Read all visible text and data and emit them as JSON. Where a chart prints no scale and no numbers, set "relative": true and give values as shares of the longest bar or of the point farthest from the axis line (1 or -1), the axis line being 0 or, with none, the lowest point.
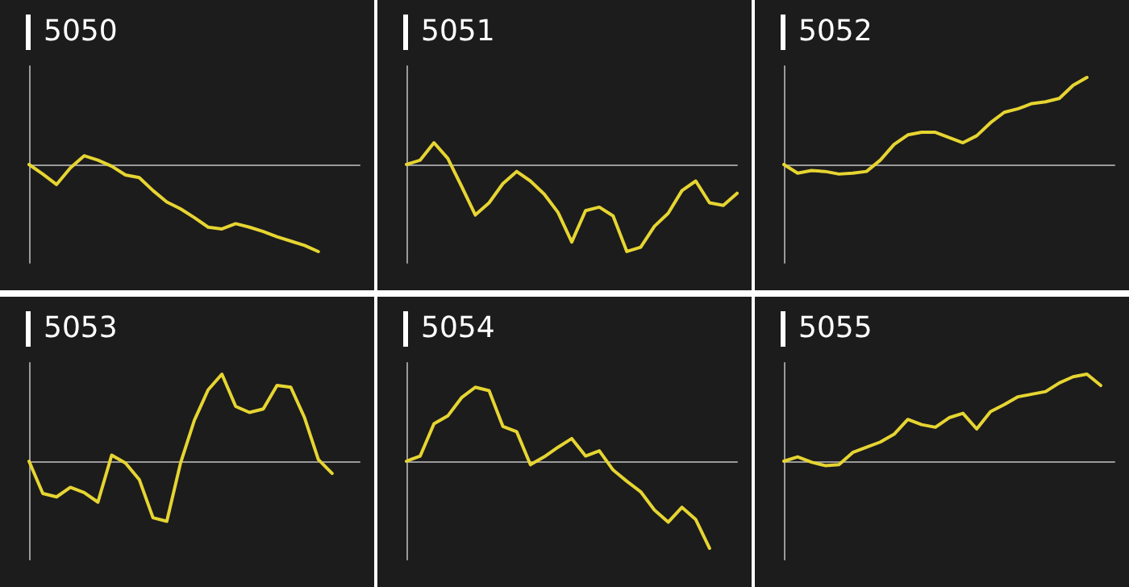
{
  "chart_data": [
    {
      "type": "line",
      "title": "5050",
      "relative": true,
      "grid": false,
      "marker": "none",
      "categories": [
        null,
        null,
        null,
        null,
        null,
        null,
        null,
        null,
        null,
        null,
        null,
        null,
        null,
        null,
        null,
        null,
        null,
        null,
        null,
        null,
        null,
        null,
        null,
        null,
        null
      ],
      "series": [
        {
          "color": "#e6d532",
          "values": [
            0,
            -0.11,
            -0.23,
            -0.04,
            0.1,
            0.05,
            -0.02,
            -0.12,
            -0.15,
            -0.3,
            -0.43,
            -0.51,
            -0.61,
            -0.72,
            -0.74,
            -0.68,
            -0.72,
            -0.77,
            -0.83,
            -0.88,
            -0.93,
            -1,
            null,
            null,
            null
          ]
        }
      ]
    },
    {
      "type": "line",
      "title": "5051",
      "relative": true,
      "grid": false,
      "marker": "none",
      "categories": [
        null,
        null,
        null,
        null,
        null,
        null,
        null,
        null,
        null,
        null,
        null,
        null,
        null,
        null,
        null,
        null,
        null,
        null,
        null,
        null,
        null,
        null,
        null,
        null,
        null
      ],
      "series": [
        {
          "color": "#e6d532",
          "values": [
            0,
            0.05,
            0.25,
            0.07,
            -0.25,
            -0.58,
            -0.44,
            -0.22,
            -0.08,
            -0.19,
            -0.34,
            -0.55,
            -0.89,
            -0.53,
            -0.49,
            -0.59,
            -1,
            -0.95,
            -0.71,
            -0.56,
            -0.3,
            -0.19,
            -0.44,
            -0.47,
            -0.33
          ]
        }
      ]
    },
    {
      "type": "line",
      "title": "5052",
      "relative": true,
      "grid": false,
      "marker": "none",
      "categories": [
        null,
        null,
        null,
        null,
        null,
        null,
        null,
        null,
        null,
        null,
        null,
        null,
        null,
        null,
        null,
        null,
        null,
        null,
        null,
        null,
        null,
        null,
        null,
        null,
        null
      ],
      "series": [
        {
          "color": "#e6d532",
          "values": [
            0,
            -0.1,
            -0.07,
            -0.08,
            -0.11,
            -0.1,
            -0.08,
            0.05,
            0.23,
            0.34,
            0.37,
            0.37,
            0.31,
            0.25,
            0.33,
            0.48,
            0.6,
            0.64,
            0.7,
            0.72,
            0.76,
            0.91,
            1,
            null,
            null
          ]
        }
      ]
    },
    {
      "type": "line",
      "title": "5053",
      "relative": true,
      "grid": false,
      "marker": "none",
      "categories": [
        null,
        null,
        null,
        null,
        null,
        null,
        null,
        null,
        null,
        null,
        null,
        null,
        null,
        null,
        null,
        null,
        null,
        null,
        null,
        null,
        null,
        null,
        null,
        null,
        null
      ],
      "series": [
        {
          "color": "#e6d532",
          "values": [
            0,
            -0.37,
            -0.41,
            -0.3,
            -0.36,
            -0.47,
            0.07,
            -0.02,
            -0.21,
            -0.65,
            -0.69,
            -0.02,
            0.47,
            0.82,
            1,
            0.63,
            0.56,
            0.6,
            0.87,
            0.85,
            0.5,
            0.02,
            -0.14,
            null,
            null
          ]
        }
      ]
    },
    {
      "type": "line",
      "title": "5054",
      "relative": true,
      "grid": false,
      "marker": "none",
      "categories": [
        null,
        null,
        null,
        null,
        null,
        null,
        null,
        null,
        null,
        null,
        null,
        null,
        null,
        null,
        null,
        null,
        null,
        null,
        null,
        null,
        null,
        null,
        null,
        null,
        null
      ],
      "series": [
        {
          "color": "#e6d532",
          "values": [
            0,
            0.06,
            0.43,
            0.52,
            0.73,
            0.85,
            0.81,
            0.4,
            0.34,
            -0.04,
            0.05,
            0.16,
            0.26,
            0.06,
            0.12,
            -0.1,
            -0.23,
            -0.35,
            -0.56,
            -0.7,
            -0.53,
            -0.67,
            -1,
            null,
            null
          ]
        }
      ]
    },
    {
      "type": "line",
      "title": "5055",
      "relative": true,
      "grid": false,
      "marker": "none",
      "categories": [
        null,
        null,
        null,
        null,
        null,
        null,
        null,
        null,
        null,
        null,
        null,
        null,
        null,
        null,
        null,
        null,
        null,
        null,
        null,
        null,
        null,
        null,
        null,
        null,
        null
      ],
      "series": [
        {
          "color": "#e6d532",
          "values": [
            0,
            0.05,
            -0.01,
            -0.05,
            -0.04,
            0.1,
            0.16,
            0.22,
            0.31,
            0.48,
            0.42,
            0.39,
            0.5,
            0.55,
            0.37,
            0.57,
            0.65,
            0.74,
            0.77,
            0.8,
            0.9,
            0.97,
            1,
            0.87,
            null
          ]
        }
      ]
    }
  ]
}
